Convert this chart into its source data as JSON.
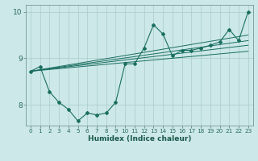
{
  "xlabel": "Humidex (Indice chaleur)",
  "ylabel": "",
  "xlim": [
    -0.5,
    23.5
  ],
  "ylim": [
    7.55,
    10.15
  ],
  "yticks": [
    8,
    9,
    10
  ],
  "xticks": [
    0,
    1,
    2,
    3,
    4,
    5,
    6,
    7,
    8,
    9,
    10,
    11,
    12,
    13,
    14,
    15,
    16,
    17,
    18,
    19,
    20,
    21,
    22,
    23
  ],
  "bg_color": "#cce8e8",
  "line_color": "#1a6e60",
  "grid_color": "#aacccc",
  "x_main": [
    0,
    1,
    2,
    3,
    4,
    5,
    6,
    7,
    8,
    9,
    10,
    11,
    12,
    13,
    14,
    15,
    16,
    17,
    18,
    19,
    20,
    21,
    22,
    23
  ],
  "y_main": [
    8.72,
    8.82,
    8.28,
    8.05,
    7.9,
    7.65,
    7.82,
    7.78,
    7.82,
    8.05,
    8.88,
    8.88,
    9.22,
    9.72,
    9.52,
    9.05,
    9.17,
    9.17,
    9.22,
    9.28,
    9.35,
    9.62,
    9.38,
    10.0
  ],
  "linear_lines": [
    {
      "x": [
        0,
        23
      ],
      "y": [
        8.72,
        9.15
      ]
    },
    {
      "x": [
        0,
        23
      ],
      "y": [
        8.72,
        9.28
      ]
    },
    {
      "x": [
        0,
        23
      ],
      "y": [
        8.72,
        9.38
      ]
    },
    {
      "x": [
        0,
        23
      ],
      "y": [
        8.72,
        9.5
      ]
    }
  ]
}
